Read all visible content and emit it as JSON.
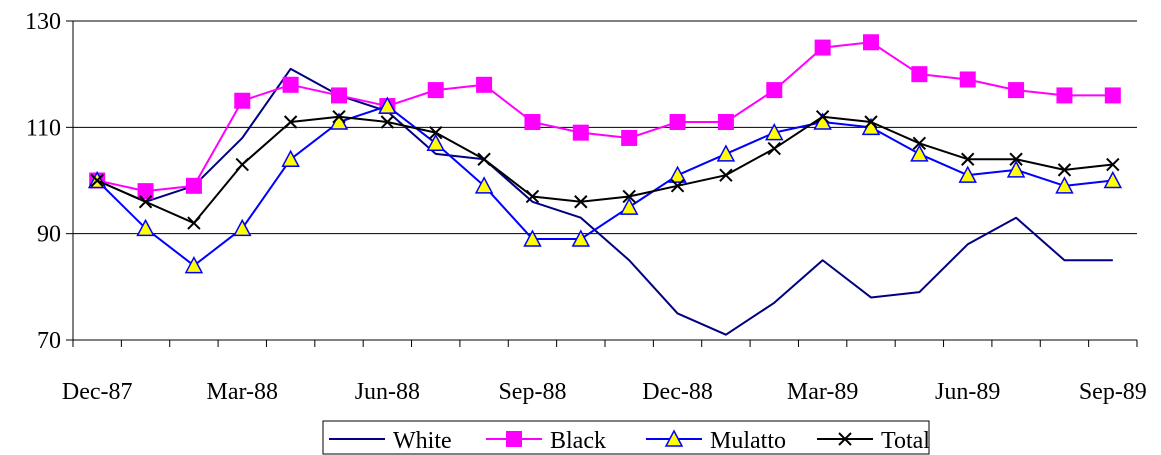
{
  "chart_data": {
    "type": "line",
    "x": [
      "Dec-87",
      "Jan-88",
      "Feb-88",
      "Mar-88",
      "Apr-88",
      "May-88",
      "Jun-88",
      "Jul-88",
      "Aug-88",
      "Sep-88",
      "Oct-88",
      "Nov-88",
      "Dec-88",
      "Jan-89",
      "Feb-89",
      "Mar-89",
      "Apr-89",
      "May-89",
      "Jun-89",
      "Jul-89",
      "Aug-89",
      "Sep-89"
    ],
    "x_tick_labels": [
      "Dec-87",
      "Mar-88",
      "Jun-88",
      "Sep-88",
      "Dec-88",
      "Mar-89",
      "Jun-89",
      "Sep-89"
    ],
    "ylim": [
      70,
      130
    ],
    "y_ticks": [
      70,
      90,
      110,
      130
    ],
    "grid": "horizontal",
    "legend_position": "bottom",
    "series": [
      {
        "name": "White",
        "color": "#000080",
        "marker": "none",
        "values": [
          100,
          96,
          99,
          108,
          121,
          116,
          113,
          105,
          104,
          96,
          93,
          85,
          75,
          71,
          77,
          85,
          78,
          79,
          88,
          93,
          85,
          85
        ]
      },
      {
        "name": "Black",
        "color": "#FF00FF",
        "marker": "square",
        "values": [
          100,
          98,
          99,
          115,
          118,
          116,
          114,
          117,
          118,
          111,
          109,
          108,
          111,
          111,
          117,
          125,
          126,
          120,
          119,
          117,
          116,
          116
        ]
      },
      {
        "name": "Mulatto",
        "color": "#0000FF",
        "marker": "triangle",
        "marker_fill": "#FFFF00",
        "values": [
          100,
          91,
          84,
          91,
          104,
          111,
          114,
          107,
          99,
          89,
          89,
          95,
          101,
          105,
          109,
          111,
          110,
          105,
          101,
          102,
          99,
          100
        ]
      },
      {
        "name": "Total",
        "color": "#000000",
        "marker": "x",
        "values": [
          100,
          96,
          92,
          103,
          111,
          112,
          111,
          109,
          104,
          97,
          96,
          97,
          99,
          101,
          106,
          112,
          111,
          107,
          104,
          104,
          102,
          103
        ]
      }
    ]
  }
}
